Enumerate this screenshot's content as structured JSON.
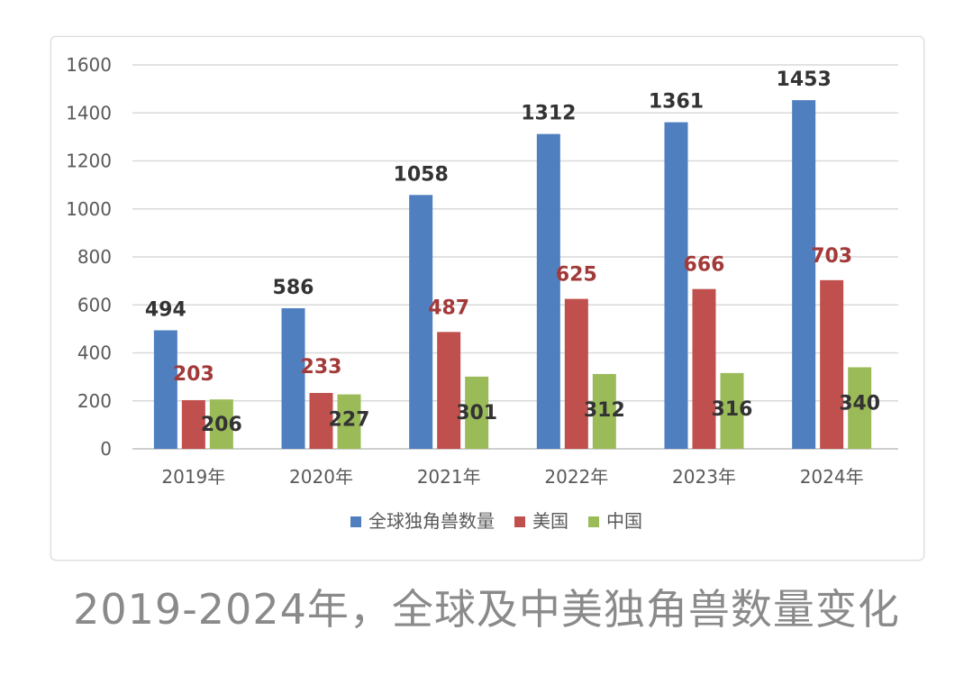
{
  "caption": "2019-2024年，全球及中美独角兽数量变化",
  "chart_data": {
    "type": "bar",
    "title": "",
    "xlabel": "",
    "ylabel": "",
    "ylim": [
      0,
      1600
    ],
    "yticks": [
      0,
      200,
      400,
      600,
      800,
      1000,
      1200,
      1400,
      1600
    ],
    "grid": true,
    "legend_position": "bottom",
    "categories": [
      "2019年",
      "2020年",
      "2021年",
      "2022年",
      "2023年",
      "2024年"
    ],
    "series": [
      {
        "name": "全球独角兽数量",
        "color": "#4f7fbf",
        "label_color": "#333333",
        "values": [
          494,
          586,
          1058,
          1312,
          1361,
          1453
        ]
      },
      {
        "name": "美国",
        "color": "#c0504d",
        "label_color": "#a33a3a",
        "values": [
          203,
          233,
          487,
          625,
          666,
          703
        ]
      },
      {
        "name": "中国",
        "color": "#9bbb59",
        "label_color": "#333333",
        "values": [
          206,
          227,
          301,
          312,
          316,
          340
        ]
      }
    ]
  }
}
